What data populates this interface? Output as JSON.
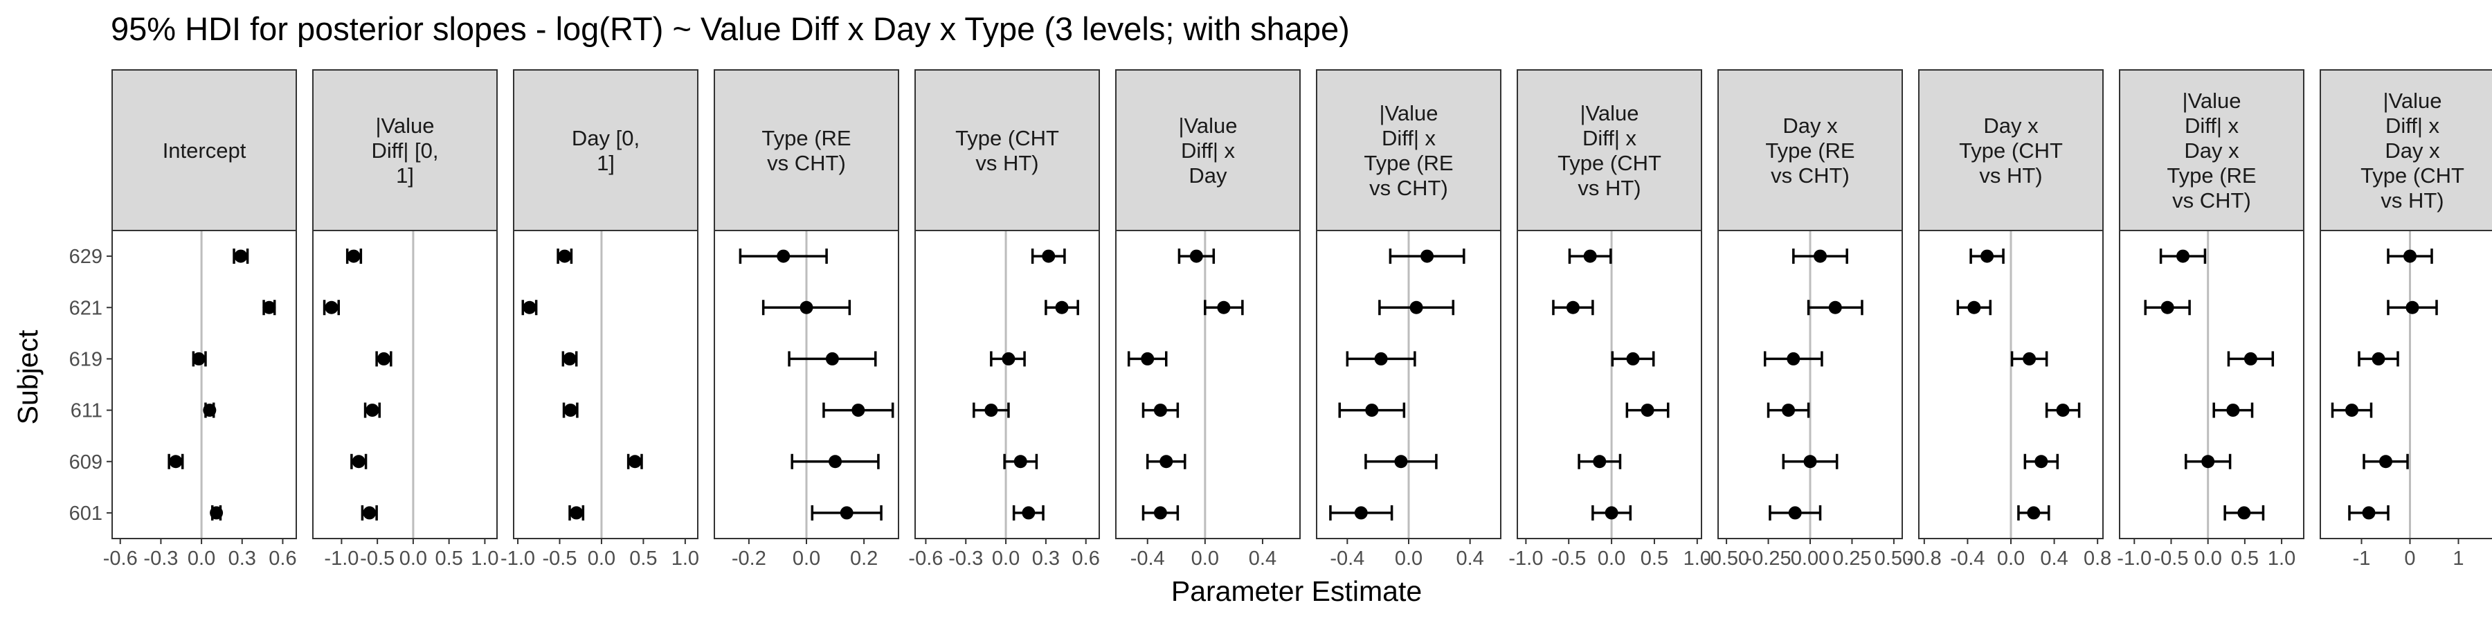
{
  "chart_data": {
    "type": "faceted-interval",
    "title": "95% HDI for posterior slopes - log(RT) ~ Value Diff x Day x Type (3 levels; with shape)",
    "xlabel": "Parameter Estimate",
    "ylabel": "Subject",
    "subjects": [
      "629",
      "621",
      "619",
      "611",
      "609",
      "601"
    ],
    "grid": false,
    "reference_line_x": 0,
    "panels": [
      {
        "strip": [
          "Intercept"
        ],
        "xlim": [
          -0.66,
          0.7
        ],
        "ticks": [
          -0.6,
          -0.3,
          0.0,
          0.3,
          0.6
        ],
        "tick_labels": [
          "-0.6",
          "-0.3",
          "0.0",
          "0.3",
          "0.6"
        ],
        "points": [
          {
            "subject": "629",
            "estimate": 0.29,
            "lower": 0.24,
            "upper": 0.34
          },
          {
            "subject": "621",
            "estimate": 0.5,
            "lower": 0.46,
            "upper": 0.54
          },
          {
            "subject": "619",
            "estimate": -0.02,
            "lower": -0.06,
            "upper": 0.03
          },
          {
            "subject": "611",
            "estimate": 0.06,
            "lower": 0.03,
            "upper": 0.09
          },
          {
            "subject": "609",
            "estimate": -0.19,
            "lower": -0.24,
            "upper": -0.14
          },
          {
            "subject": "601",
            "estimate": 0.11,
            "lower": 0.08,
            "upper": 0.14
          }
        ]
      },
      {
        "strip": [
          "|Value",
          "Diff| [0,",
          "1]"
        ],
        "xlim": [
          -1.4,
          1.17
        ],
        "ticks": [
          -1.0,
          -0.5,
          0.0,
          0.5,
          1.0
        ],
        "tick_labels": [
          "-1.0",
          "-0.5",
          "0.0",
          "0.5",
          "1.0"
        ],
        "points": [
          {
            "subject": "629",
            "estimate": -0.83,
            "lower": -0.92,
            "upper": -0.73
          },
          {
            "subject": "621",
            "estimate": -1.14,
            "lower": -1.24,
            "upper": -1.04
          },
          {
            "subject": "619",
            "estimate": -0.41,
            "lower": -0.51,
            "upper": -0.31
          },
          {
            "subject": "611",
            "estimate": -0.57,
            "lower": -0.67,
            "upper": -0.47
          },
          {
            "subject": "609",
            "estimate": -0.76,
            "lower": -0.86,
            "upper": -0.66
          },
          {
            "subject": "601",
            "estimate": -0.61,
            "lower": -0.71,
            "upper": -0.51
          }
        ]
      },
      {
        "strip": [
          "Day [0,",
          "1]"
        ],
        "xlim": [
          -1.05,
          1.15
        ],
        "ticks": [
          -1.0,
          -0.5,
          0.0,
          0.5,
          1.0
        ],
        "tick_labels": [
          "-1.0",
          "-0.5",
          "0.0",
          "0.5",
          "1.0"
        ],
        "points": [
          {
            "subject": "629",
            "estimate": -0.44,
            "lower": -0.52,
            "upper": -0.36
          },
          {
            "subject": "621",
            "estimate": -0.86,
            "lower": -0.94,
            "upper": -0.78
          },
          {
            "subject": "619",
            "estimate": -0.38,
            "lower": -0.46,
            "upper": -0.3
          },
          {
            "subject": "611",
            "estimate": -0.37,
            "lower": -0.45,
            "upper": -0.29
          },
          {
            "subject": "609",
            "estimate": 0.4,
            "lower": 0.32,
            "upper": 0.48
          },
          {
            "subject": "601",
            "estimate": -0.3,
            "lower": -0.38,
            "upper": -0.22
          }
        ]
      },
      {
        "strip": [
          "Type (RE",
          "vs CHT)"
        ],
        "xlim": [
          -0.32,
          0.32
        ],
        "ticks": [
          -0.2,
          0.0,
          0.2
        ],
        "tick_labels": [
          "-0.2",
          "0.0",
          "0.2"
        ],
        "points": [
          {
            "subject": "629",
            "estimate": -0.08,
            "lower": -0.23,
            "upper": 0.07
          },
          {
            "subject": "621",
            "estimate": 0.0,
            "lower": -0.15,
            "upper": 0.15
          },
          {
            "subject": "619",
            "estimate": 0.09,
            "lower": -0.06,
            "upper": 0.24
          },
          {
            "subject": "611",
            "estimate": 0.18,
            "lower": 0.06,
            "upper": 0.3
          },
          {
            "subject": "609",
            "estimate": 0.1,
            "lower": -0.05,
            "upper": 0.25
          },
          {
            "subject": "601",
            "estimate": 0.14,
            "lower": 0.02,
            "upper": 0.26
          }
        ]
      },
      {
        "strip": [
          "Type (CHT",
          "vs HT)"
        ],
        "xlim": [
          -0.68,
          0.7
        ],
        "ticks": [
          -0.6,
          -0.3,
          0.0,
          0.3,
          0.6
        ],
        "tick_labels": [
          "-0.6",
          "-0.3",
          "0.0",
          "0.3",
          "0.6"
        ],
        "points": [
          {
            "subject": "629",
            "estimate": 0.32,
            "lower": 0.2,
            "upper": 0.44
          },
          {
            "subject": "621",
            "estimate": 0.42,
            "lower": 0.3,
            "upper": 0.54
          },
          {
            "subject": "619",
            "estimate": 0.02,
            "lower": -0.11,
            "upper": 0.14
          },
          {
            "subject": "611",
            "estimate": -0.11,
            "lower": -0.24,
            "upper": 0.02
          },
          {
            "subject": "609",
            "estimate": 0.11,
            "lower": -0.01,
            "upper": 0.23
          },
          {
            "subject": "601",
            "estimate": 0.17,
            "lower": 0.06,
            "upper": 0.28
          }
        ]
      },
      {
        "strip": [
          "|Value",
          "Diff| x",
          "Day"
        ],
        "xlim": [
          -0.62,
          0.66
        ],
        "ticks": [
          -0.4,
          0.0,
          0.4
        ],
        "tick_labels": [
          "-0.4",
          "0.0",
          "0.4"
        ],
        "points": [
          {
            "subject": "629",
            "estimate": -0.06,
            "lower": -0.18,
            "upper": 0.06
          },
          {
            "subject": "621",
            "estimate": 0.13,
            "lower": 0.0,
            "upper": 0.26
          },
          {
            "subject": "619",
            "estimate": -0.4,
            "lower": -0.53,
            "upper": -0.27
          },
          {
            "subject": "611",
            "estimate": -0.31,
            "lower": -0.43,
            "upper": -0.19
          },
          {
            "subject": "609",
            "estimate": -0.27,
            "lower": -0.4,
            "upper": -0.14
          },
          {
            "subject": "601",
            "estimate": -0.31,
            "lower": -0.43,
            "upper": -0.19
          }
        ]
      },
      {
        "strip": [
          "|Value",
          "Diff| x",
          "Type (RE",
          "vs CHT)"
        ],
        "xlim": [
          -0.6,
          0.6
        ],
        "ticks": [
          -0.4,
          0.0,
          0.4
        ],
        "tick_labels": [
          "-0.4",
          "0.0",
          "0.4"
        ],
        "points": [
          {
            "subject": "629",
            "estimate": 0.12,
            "lower": -0.12,
            "upper": 0.36
          },
          {
            "subject": "621",
            "estimate": 0.05,
            "lower": -0.19,
            "upper": 0.29
          },
          {
            "subject": "619",
            "estimate": -0.18,
            "lower": -0.4,
            "upper": 0.04
          },
          {
            "subject": "611",
            "estimate": -0.24,
            "lower": -0.45,
            "upper": -0.03
          },
          {
            "subject": "609",
            "estimate": -0.05,
            "lower": -0.28,
            "upper": 0.18
          },
          {
            "subject": "601",
            "estimate": -0.31,
            "lower": -0.51,
            "upper": -0.11
          }
        ]
      },
      {
        "strip": [
          "|Value",
          "Diff| x",
          "Type (CHT",
          "vs HT)"
        ],
        "xlim": [
          -1.1,
          1.05
        ],
        "ticks": [
          -1.0,
          -0.5,
          0.0,
          0.5,
          1.0
        ],
        "tick_labels": [
          "-1.0",
          "-0.5",
          "0.0",
          "0.5",
          "1.0"
        ],
        "points": [
          {
            "subject": "629",
            "estimate": -0.25,
            "lower": -0.49,
            "upper": -0.01
          },
          {
            "subject": "621",
            "estimate": -0.45,
            "lower": -0.68,
            "upper": -0.22
          },
          {
            "subject": "619",
            "estimate": 0.25,
            "lower": 0.01,
            "upper": 0.49
          },
          {
            "subject": "611",
            "estimate": 0.42,
            "lower": 0.18,
            "upper": 0.66
          },
          {
            "subject": "609",
            "estimate": -0.14,
            "lower": -0.38,
            "upper": 0.1
          },
          {
            "subject": "601",
            "estimate": 0.0,
            "lower": -0.22,
            "upper": 0.22
          }
        ]
      },
      {
        "strip": [
          "Day x",
          "Type (RE",
          "vs CHT)"
        ],
        "xlim": [
          -0.55,
          0.55
        ],
        "ticks": [
          -0.5,
          -0.25,
          0.0,
          0.25,
          0.5
        ],
        "tick_labels": [
          "-0.50",
          "-0.25",
          "0.00",
          "0.25",
          "0.50"
        ],
        "points": [
          {
            "subject": "629",
            "estimate": 0.06,
            "lower": -0.1,
            "upper": 0.22
          },
          {
            "subject": "621",
            "estimate": 0.15,
            "lower": -0.01,
            "upper": 0.31
          },
          {
            "subject": "619",
            "estimate": -0.1,
            "lower": -0.27,
            "upper": 0.07
          },
          {
            "subject": "611",
            "estimate": -0.13,
            "lower": -0.25,
            "upper": -0.01
          },
          {
            "subject": "609",
            "estimate": 0.0,
            "lower": -0.16,
            "upper": 0.16
          },
          {
            "subject": "601",
            "estimate": -0.09,
            "lower": -0.24,
            "upper": 0.06
          }
        ]
      },
      {
        "strip": [
          "Day x",
          "Type (CHT",
          "vs HT)"
        ],
        "xlim": [
          -0.85,
          0.85
        ],
        "ticks": [
          -0.8,
          -0.4,
          0.0,
          0.4,
          0.8
        ],
        "tick_labels": [
          "-0.8",
          "-0.4",
          "0.0",
          "0.4",
          "0.8"
        ],
        "points": [
          {
            "subject": "629",
            "estimate": -0.22,
            "lower": -0.37,
            "upper": -0.07
          },
          {
            "subject": "621",
            "estimate": -0.34,
            "lower": -0.49,
            "upper": -0.19
          },
          {
            "subject": "619",
            "estimate": 0.17,
            "lower": 0.01,
            "upper": 0.33
          },
          {
            "subject": "611",
            "estimate": 0.48,
            "lower": 0.33,
            "upper": 0.63
          },
          {
            "subject": "609",
            "estimate": 0.28,
            "lower": 0.13,
            "upper": 0.43
          },
          {
            "subject": "601",
            "estimate": 0.21,
            "lower": 0.07,
            "upper": 0.35
          }
        ]
      },
      {
        "strip": [
          "|Value",
          "Diff| x",
          "Day x",
          "Type (RE",
          "vs CHT)"
        ],
        "xlim": [
          -1.2,
          1.3
        ],
        "ticks": [
          -1.0,
          -0.5,
          0.0,
          0.5,
          1.0
        ],
        "tick_labels": [
          "-1.0",
          "-0.5",
          "0.0",
          "0.5",
          "1.0"
        ],
        "points": [
          {
            "subject": "629",
            "estimate": -0.34,
            "lower": -0.64,
            "upper": -0.04
          },
          {
            "subject": "621",
            "estimate": -0.55,
            "lower": -0.85,
            "upper": -0.25
          },
          {
            "subject": "619",
            "estimate": 0.58,
            "lower": 0.28,
            "upper": 0.88
          },
          {
            "subject": "611",
            "estimate": 0.34,
            "lower": 0.08,
            "upper": 0.6
          },
          {
            "subject": "609",
            "estimate": 0.0,
            "lower": -0.3,
            "upper": 0.3
          },
          {
            "subject": "601",
            "estimate": 0.49,
            "lower": 0.23,
            "upper": 0.75
          }
        ]
      },
      {
        "strip": [
          "|Value",
          "Diff| x",
          "Day x",
          "Type (CHT",
          "vs HT)"
        ],
        "xlim": [
          -1.85,
          1.95
        ],
        "ticks": [
          -1,
          0,
          1
        ],
        "tick_labels": [
          "-1",
          "0",
          "1"
        ],
        "points": [
          {
            "subject": "629",
            "estimate": 0.0,
            "lower": -0.45,
            "upper": 0.45
          },
          {
            "subject": "621",
            "estimate": 0.05,
            "lower": -0.45,
            "upper": 0.55
          },
          {
            "subject": "619",
            "estimate": -0.65,
            "lower": -1.05,
            "upper": -0.25
          },
          {
            "subject": "611",
            "estimate": -1.2,
            "lower": -1.6,
            "upper": -0.8
          },
          {
            "subject": "609",
            "estimate": -0.5,
            "lower": -0.95,
            "upper": -0.05
          },
          {
            "subject": "601",
            "estimate": -0.85,
            "lower": -1.25,
            "upper": -0.45
          }
        ]
      }
    ]
  }
}
